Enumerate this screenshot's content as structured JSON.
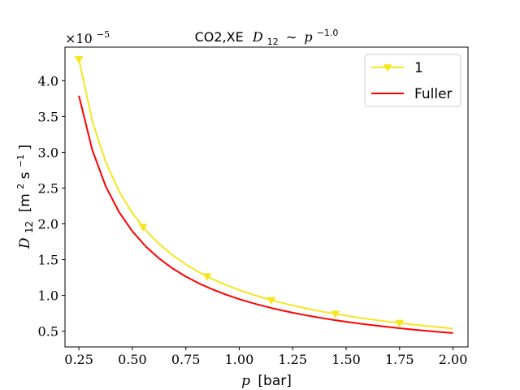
{
  "chart_data": {
    "type": "line",
    "title_prefix": "CO2,XE",
    "title_math_base": "D",
    "title_math_sub": "12",
    "title_math_rel": "∼",
    "title_math_p": "p",
    "title_math_exp": "−1.0",
    "xlabel_var": "p",
    "xlabel_unit": "[bar]",
    "ylabel_var": "D",
    "ylabel_sub": "12",
    "ylabel_unit_open": "[m",
    "ylabel_unit_sq": "2",
    "ylabel_unit_mid": "s",
    "ylabel_unit_exp": "−1",
    "ylabel_unit_close": "]",
    "offset_prefix": "×10",
    "offset_exp": "−5",
    "xlim": [
      0.185,
      2.07
    ],
    "ylim": [
      0.28,
      4.47
    ],
    "x_ticks": [
      0.25,
      0.5,
      0.75,
      1.0,
      1.25,
      1.5,
      1.75,
      2.0
    ],
    "x_tick_labels": [
      "0.25",
      "0.50",
      "0.75",
      "1.00",
      "1.25",
      "1.50",
      "1.75",
      "2.00"
    ],
    "y_ticks": [
      0.5,
      1.0,
      1.5,
      2.0,
      2.5,
      3.0,
      3.5,
      4.0
    ],
    "y_tick_labels": [
      "0.5",
      "1.0",
      "1.5",
      "2.0",
      "2.5",
      "3.0",
      "3.5",
      "4.0"
    ],
    "legend_position": "top-right",
    "grid": false,
    "series": [
      {
        "name": "1",
        "color": "#f5e61e",
        "marker": "triangle-down",
        "coef": 1.075,
        "x_start": 0.25,
        "x_end": 2.0,
        "n_points": 29,
        "marker_x": [
          0.25,
          0.55,
          0.85,
          1.15,
          1.45,
          1.75
        ]
      },
      {
        "name": "Fuller",
        "color": "#ff0000",
        "marker": "none",
        "coef": 0.948,
        "x_start": 0.25,
        "x_end": 2.0,
        "n_points": 29,
        "marker_x": []
      }
    ]
  }
}
